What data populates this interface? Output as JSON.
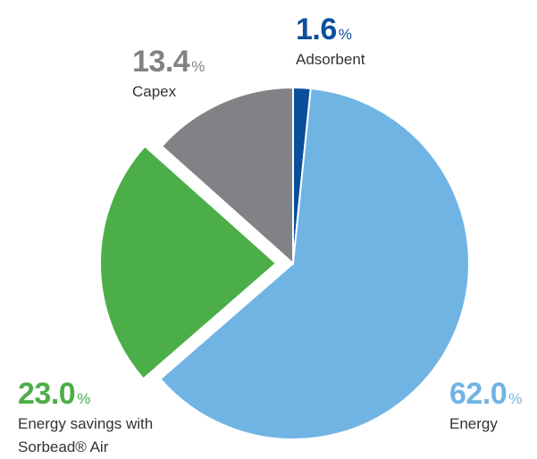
{
  "chart_data": {
    "type": "pie",
    "categories": [
      "Adsorbent",
      "Energy",
      "Energy savings with Sorbead® Air",
      "Capex"
    ],
    "values": [
      1.6,
      62.0,
      23.0,
      13.4
    ],
    "value_labels": [
      "1.6",
      "62.0",
      "23.0",
      "13.4"
    ],
    "unit": "%",
    "colors": [
      "#0b4f9c",
      "#70b4e4",
      "#4bae48",
      "#808285"
    ]
  }
}
